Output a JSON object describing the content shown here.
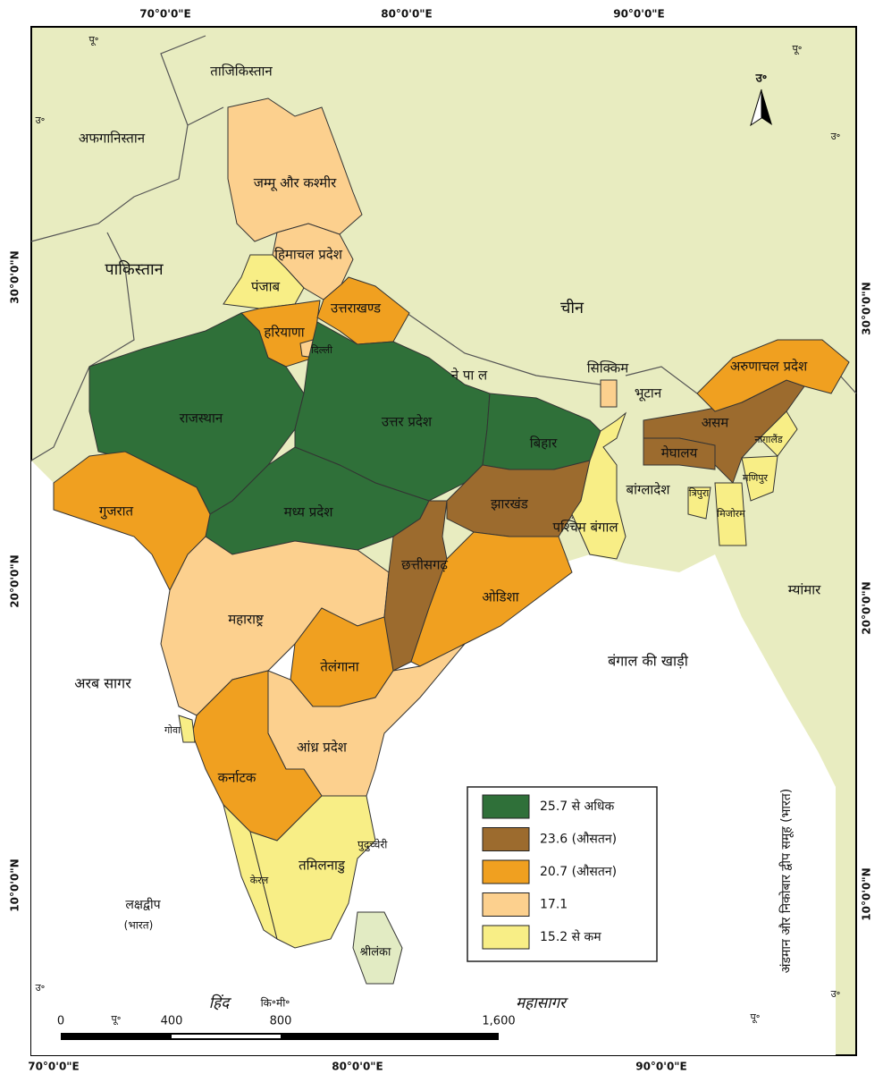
{
  "map": {
    "states": [
      {
        "name": "जम्मू और कश्मीर",
        "color": "#fcd08e"
      },
      {
        "name": "हिमाचल प्रदेश",
        "color": "#fcd08e"
      },
      {
        "name": "पंजाब",
        "color": "#f8ee86"
      },
      {
        "name": "हरियाणा",
        "color": "#f0a020"
      },
      {
        "name": "दिल्ली",
        "color": "#fcd08e"
      },
      {
        "name": "उत्तराखण्ड",
        "color": "#f0a020"
      },
      {
        "name": "राजस्थान",
        "color": "#2f7039"
      },
      {
        "name": "उत्तर प्रदेश",
        "color": "#2f7039"
      },
      {
        "name": "बिहार",
        "color": "#2f7039"
      },
      {
        "name": "मध्य प्रदेश",
        "color": "#2f7039"
      },
      {
        "name": "गुजरात",
        "color": "#f0a020"
      },
      {
        "name": "महाराष्ट्र",
        "color": "#fcd08e"
      },
      {
        "name": "छत्तीसगढ़",
        "color": "#9c6b2e"
      },
      {
        "name": "झारखंड",
        "color": "#9c6b2e"
      },
      {
        "name": "ओडिशा",
        "color": "#f0a020"
      },
      {
        "name": "तेलंगाना",
        "color": "#f0a020"
      },
      {
        "name": "आंध्र प्रदेश",
        "color": "#fcd08e"
      },
      {
        "name": "कर्नाटक",
        "color": "#f0a020"
      },
      {
        "name": "गोवा",
        "color": "#f8ee86"
      },
      {
        "name": "केरल",
        "color": "#f8ee86"
      },
      {
        "name": "तमिलनाडु",
        "color": "#f8ee86"
      },
      {
        "name": "पश्चिम बंगाल",
        "color": "#f8ee86"
      },
      {
        "name": "सिक्किम",
        "color": "#fcd08e"
      },
      {
        "name": "असम",
        "color": "#9c6b2e"
      },
      {
        "name": "मेघालय",
        "color": "#9c6b2e"
      },
      {
        "name": "अरुणाचल प्रदेश",
        "color": "#f0a020"
      },
      {
        "name": "नागालैंड",
        "color": "#f8ee86"
      },
      {
        "name": "मणिपुर",
        "color": "#f8ee86"
      },
      {
        "name": "मिजोरम",
        "color": "#f8ee86"
      },
      {
        "name": "त्रिपुरा",
        "color": "#f8ee86"
      }
    ],
    "places": [
      "पुदुच्चेरी",
      "ताजिकिस्तान",
      "अफगानिस्तान",
      "पाकिस्तान",
      "चीन",
      "ने पा ल",
      "भूटान",
      "बांग्लादेश",
      "म्यांमार",
      "श्रीलंका",
      "अरब सागर",
      "बंगाल की खाड़ी",
      "हिंद",
      "महासागर",
      "लक्षद्वीप",
      "(भारत)",
      "अंडमान और निकोबार द्वीप समूह (भारत)"
    ],
    "legend": [
      {
        "label": "25.7 से अधिक",
        "color": "#2f7039"
      },
      {
        "label": "23.6 (औसतन)",
        "color": "#9c6b2e"
      },
      {
        "label": "20.7 (औसतन)",
        "color": "#f0a020"
      },
      {
        "label": "17.1",
        "color": "#fcd08e"
      },
      {
        "label": "15.2 से कम",
        "color": "#f8ee86"
      }
    ],
    "graticule": {
      "top": [
        "70°0'0\"E",
        "80°0'0\"E",
        "90°0'0\"E"
      ],
      "bottom": [
        "70°0'0\"E",
        "80°0'0\"E",
        "90°0'0\"E"
      ],
      "left": [
        "30°0'0\"N",
        "20°0'0\"N",
        "10°0'0\"N"
      ],
      "right": [
        "30°0'0\"N",
        "20°0'0\"N",
        "10°0'0\"N"
      ]
    },
    "scale_bar": {
      "labels": [
        "0",
        "400",
        "800",
        "1,600"
      ],
      "unit": "कि॰मी॰"
    },
    "north_arrow": "उ॰",
    "corner_marks": [
      "पू॰",
      "उ॰",
      "पू॰",
      "उ॰",
      "उ॰",
      "पू॰",
      "उ॰"
    ]
  }
}
